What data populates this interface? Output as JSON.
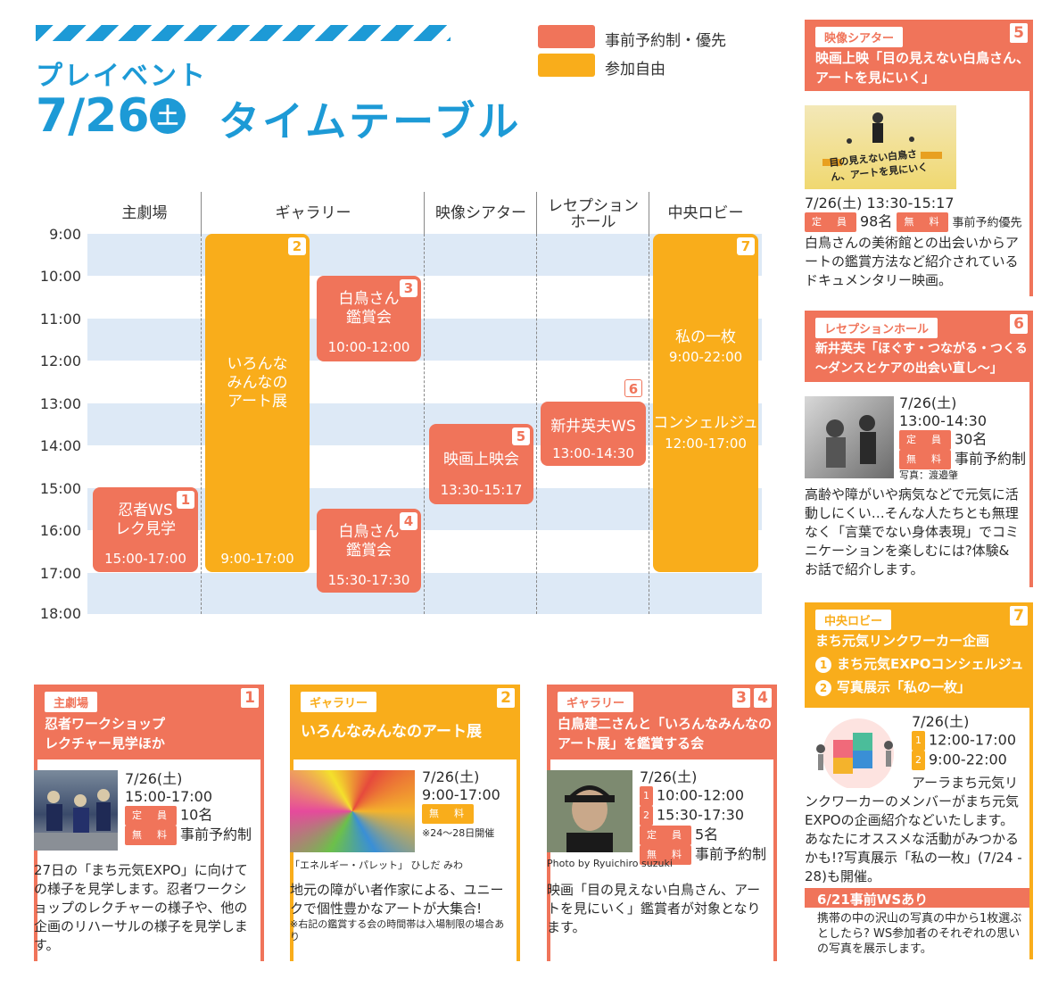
{
  "header": {
    "pre": "プレイベント",
    "date": "7/26",
    "dow": "土",
    "title": "タイムテーブル"
  },
  "legend": [
    {
      "label": "事前予約制・優先",
      "color": "#f0745a"
    },
    {
      "label": "参加自由",
      "color": "#f9ad1b"
    }
  ],
  "columns": [
    "主劇場",
    "ギャラリー",
    "映像シアター",
    "レセプション\nホール",
    "中央ロビー"
  ],
  "hours": [
    "9:00",
    "10:00",
    "11:00",
    "12:00",
    "13:00",
    "14:00",
    "15:00",
    "16:00",
    "17:00",
    "18:00"
  ],
  "events": {
    "e1": {
      "num": "1",
      "title": "忍者WS\nレク見学",
      "time": "15:00-17:00"
    },
    "e2": {
      "num": "2",
      "title": "いろんな\nみんなの\nアート展",
      "time": "9:00-17:00"
    },
    "e3": {
      "num": "3",
      "title": "白鳥さん\n鑑賞会",
      "time": "10:00-12:00"
    },
    "e4": {
      "num": "4",
      "title": "白鳥さん\n鑑賞会",
      "time": "15:30-17:30"
    },
    "e5": {
      "num": "5",
      "title": "映画上映会",
      "time": "13:30-15:17"
    },
    "e6": {
      "num": "6",
      "title": "新井英夫WS",
      "time": "13:00-14:30"
    },
    "e7": {
      "num": "7",
      "title": "私の一枚",
      "time": "9:00-22:00",
      "title2": "コンシェルジュ",
      "time2": "12:00-17:00"
    }
  },
  "cards": {
    "c1": {
      "tag": "主劇場",
      "num": "1",
      "title": "忍者ワークショップ\nレクチャー見学ほか",
      "date": "7/26(土)",
      "time": "15:00-17:00",
      "cap_label": "定　員",
      "cap": "10名",
      "fee_label": "無　料",
      "fee": "事前予約制",
      "desc": "27日の「まち元気EXPO」に向けての様子を見学します。忍者ワークショップのレクチャーの様子や、他の企画のリハーサルの様子を見学します。"
    },
    "c2": {
      "tag": "ギャラリー",
      "num": "2",
      "title": "いろんなみんなのアート展",
      "date": "7/26(土)",
      "time": "9:00-17:00",
      "fee_label": "無　料",
      "note": "※24～28日開催",
      "caption": "「エネルギー・パレット」 ひしだ みわ",
      "desc": "地元の障がい者作家による、ユニークで個性豊かなアートが大集合!",
      "small": "※右記の鑑賞する会の時間帯は入場制限の場合あり"
    },
    "c3": {
      "tag": "ギャラリー",
      "num": "3",
      "num2": "4",
      "title": "白鳥建二さんと「いろんなみんなの\nアート展」を鑑賞する会",
      "date": "7/26(土)",
      "t1": "10:00-12:00",
      "t2": "15:30-17:30",
      "cap_label": "定　員",
      "cap": "5名",
      "fee_label": "無　料",
      "fee": "事前予約制",
      "caption": "Photo by Ryuichiro suzuki",
      "desc": "映画「目の見えない白鳥さん、アートを見にいく」鑑賞者が対象となります。"
    },
    "c5": {
      "tag": "映像シアター",
      "num": "5",
      "title": "映画上映「目の見えない白鳥さん、\nアートを見にいく」",
      "date_time": "7/26(土) 13:30-15:17",
      "cap_label": "定　員",
      "cap": "98名",
      "fee_label": "無　料",
      "fee": "事前予約優先",
      "desc": "白鳥さんの美術館との出会いからアートの鑑賞方法など紹介されているドキュメンタリー映画。",
      "poster": "目の見えない白鳥さん、アートを見にいく"
    },
    "c6": {
      "tag": "レセプションホール",
      "num": "6",
      "title": "新井英夫「ほぐす・つながる・つくる\n～ダンスとケアの出会い直し～」",
      "date": "7/26(土)",
      "time": "13:00-14:30",
      "cap_label": "定　員",
      "cap": "30名",
      "fee_label": "無　料",
      "fee": "事前予約制",
      "caption": "写真：渡邉肇",
      "desc": "高齢や障がいや病気などで元気に活動しにくい…そんな人たちとも無理なく「言葉でない身体表現」でコミニケーションを楽しむには?体験&お話で紹介します。"
    },
    "c7": {
      "tag": "中央ロビー",
      "num": "7",
      "title": "まち元気リンクワーカー企画",
      "item1": "まち元気EXPOコンシェルジュ",
      "item2": "写真展示「私の一枚」",
      "date": "7/26(土)",
      "t1": "12:00-17:00",
      "t2": "9:00-22:00",
      "desc": "アーラまち元気リンクワーカーのメンバーがまち元気EXPOの企画紹介などいたします。あなたにオススメな活動がみつかるかも!?写真展示「私の一枚」(7/24 - 28)も開催。",
      "sub": "6/21事前WSあり",
      "sub_desc": "携帯の中の沢山の写真の中から1枚選ぶとしたら? WS参加者のそれぞれの思いの写真を展示します。"
    }
  },
  "colors": {
    "blue": "#1d9ad6",
    "red": "#f0745a",
    "orange": "#f9ad1b",
    "band": "#dde9f6"
  }
}
